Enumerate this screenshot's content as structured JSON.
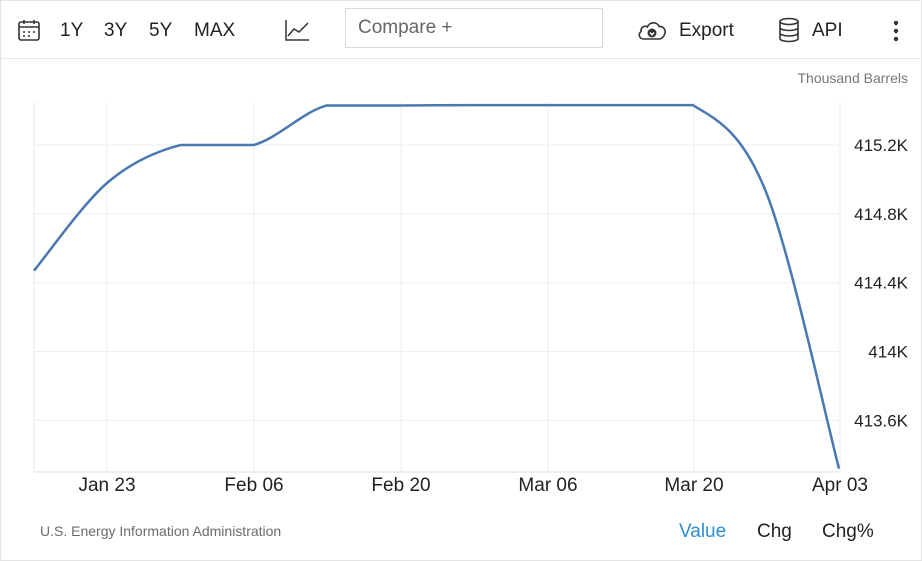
{
  "toolbar": {
    "ranges": [
      "1Y",
      "3Y",
      "5Y",
      "MAX"
    ],
    "compare_placeholder": "Compare +",
    "export_label": "Export",
    "api_label": "API",
    "icons": {
      "calendar": "calendar-icon",
      "chart_type": "line-chart-icon",
      "export": "cloud-download-icon",
      "api": "database-icon",
      "more": "kebab-menu-icon"
    }
  },
  "unit_label": "Thousand Barrels",
  "source": "U.S. Energy Information Administration",
  "view_toggles": {
    "value": "Value",
    "chg": "Chg",
    "chg_pct": "Chg%"
  },
  "colors": {
    "line": "#4a78b0",
    "active_toggle": "#2a8fd6",
    "grid": "#eeeeee"
  },
  "chart_data": {
    "type": "line",
    "title": "",
    "xlabel": "",
    "ylabel": "",
    "unit": "Thousand Barrels",
    "x_tick_labels": [
      "Jan 23",
      "Feb 06",
      "Feb 20",
      "Mar 06",
      "Mar 20",
      "Apr 03"
    ],
    "y_tick_labels": [
      "413.6K",
      "414K",
      "414.4K",
      "414.8K",
      "415.2K"
    ],
    "y_ticks": [
      413600,
      414000,
      414400,
      414800,
      415200
    ],
    "ylim": [
      413300,
      415450
    ],
    "xlim": [
      "2025-01-16",
      "2025-04-03"
    ],
    "grid": true,
    "series": [
      {
        "points": [
          {
            "x": "2025-01-16",
            "y": 414470
          },
          {
            "x": "2025-01-23",
            "y": 414980
          },
          {
            "x": "2025-01-30",
            "y": 415200
          },
          {
            "x": "2025-02-06",
            "y": 415200
          },
          {
            "x": "2025-02-13",
            "y": 415430
          },
          {
            "x": "2025-02-20",
            "y": 415430
          },
          {
            "x": "2025-02-27",
            "y": 415432
          },
          {
            "x": "2025-03-06",
            "y": 415432
          },
          {
            "x": "2025-03-13",
            "y": 415432
          },
          {
            "x": "2025-03-20",
            "y": 415432
          },
          {
            "x": "2025-03-27",
            "y": 414930
          },
          {
            "x": "2025-04-03",
            "y": 413320
          }
        ]
      }
    ]
  }
}
